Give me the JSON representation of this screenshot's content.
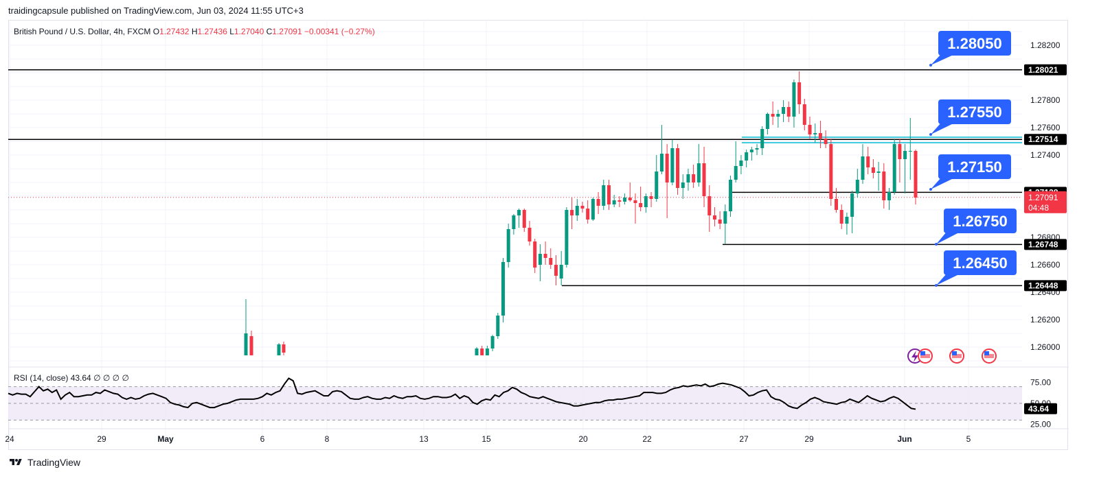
{
  "publisher": "traidingcapsule published on TradingView.com, Jun 03, 2024 11:55 UTC+3",
  "symbol": "British Pound / U.S. Dollar, 4h, FXCM",
  "ohlc": [
    {
      "k": "O",
      "v": "1.27432"
    },
    {
      "k": "H",
      "v": "1.27436"
    },
    {
      "k": "L",
      "v": "1.27040"
    },
    {
      "k": "C",
      "v": "1.27091"
    }
  ],
  "change": "−0.00341 (−0.27%)",
  "brand": "TradingView",
  "colors": {
    "up": "#089981",
    "down": "#f23645",
    "callout": "#2962ff",
    "rsi": "#000000",
    "rsi_band": "#7e57c2"
  },
  "chart_data": {
    "type": "candlestick",
    "symbol": "GBPUSD",
    "timeframe": "4h",
    "y_ticks": [
      "1.28200",
      "1.27800",
      "1.27600",
      "1.27400",
      "1.26800",
      "1.26600",
      "1.26400",
      "1.26200",
      "1.26000"
    ],
    "x_ticks": [
      "24",
      "29",
      "May",
      "6",
      "8",
      "13",
      "15",
      "20",
      "22",
      "27",
      "29",
      "Jun",
      "5"
    ],
    "horizontal_levels": [
      {
        "value": 1.28021,
        "label": "1.28021"
      },
      {
        "value": 1.27514,
        "label": "1.27514"
      },
      {
        "value": 1.27128,
        "label": "1.27128"
      },
      {
        "value": 1.26748,
        "label": "1.26748"
      },
      {
        "value": 1.26448,
        "label": "1.26448"
      }
    ],
    "current_price": {
      "value": 1.27091,
      "label": "1.27091",
      "countdown": "04:48"
    },
    "callouts": [
      {
        "label": "1.28050",
        "value": 1.2805
      },
      {
        "label": "1.27550",
        "value": 1.2755
      },
      {
        "label": "1.27150",
        "value": 1.2715
      },
      {
        "label": "1.26750",
        "value": 1.2675
      },
      {
        "label": "1.26450",
        "value": 1.2645
      }
    ],
    "candles": [
      {
        "o": 1.2594,
        "h": 1.2635,
        "l": 1.2594,
        "c": 1.261
      },
      {
        "o": 1.2608,
        "h": 1.2612,
        "l": 1.2594,
        "c": 1.2594
      },
      {
        "o": 1.2594,
        "h": 1.2603,
        "l": 1.2594,
        "c": 1.2602
      },
      {
        "o": 1.2602,
        "h": 1.2604,
        "l": 1.2594,
        "c": 1.2596
      },
      {
        "o": 1.2594,
        "h": 1.26,
        "l": 1.2594,
        "c": 1.2599
      },
      {
        "o": 1.2599,
        "h": 1.2601,
        "l": 1.2594,
        "c": 1.2594
      },
      {
        "o": 1.2594,
        "h": 1.2601,
        "l": 1.2594,
        "c": 1.2599
      },
      {
        "o": 1.2599,
        "h": 1.2609,
        "l": 1.2597,
        "c": 1.2608
      },
      {
        "o": 1.2608,
        "h": 1.2625,
        "l": 1.2606,
        "c": 1.2623
      },
      {
        "o": 1.2623,
        "h": 1.2665,
        "l": 1.2618,
        "c": 1.2662
      },
      {
        "o": 1.2662,
        "h": 1.269,
        "l": 1.2658,
        "c": 1.2686
      },
      {
        "o": 1.2686,
        "h": 1.2697,
        "l": 1.2682,
        "c": 1.2696
      },
      {
        "o": 1.2696,
        "h": 1.2701,
        "l": 1.2687,
        "c": 1.27
      },
      {
        "o": 1.27,
        "h": 1.2701,
        "l": 1.2684,
        "c": 1.2687
      },
      {
        "o": 1.2687,
        "h": 1.2692,
        "l": 1.2674,
        "c": 1.2677
      },
      {
        "o": 1.2677,
        "h": 1.2679,
        "l": 1.2654,
        "c": 1.2658
      },
      {
        "o": 1.266,
        "h": 1.2675,
        "l": 1.2648,
        "c": 1.2668
      },
      {
        "o": 1.2668,
        "h": 1.2677,
        "l": 1.266,
        "c": 1.2665
      },
      {
        "o": 1.2665,
        "h": 1.2672,
        "l": 1.2657,
        "c": 1.266
      },
      {
        "o": 1.266,
        "h": 1.2667,
        "l": 1.2645,
        "c": 1.2652
      },
      {
        "o": 1.265,
        "h": 1.267,
        "l": 1.2645,
        "c": 1.266
      },
      {
        "o": 1.266,
        "h": 1.2702,
        "l": 1.2658,
        "c": 1.27
      },
      {
        "o": 1.27,
        "h": 1.2709,
        "l": 1.2686,
        "c": 1.2696
      },
      {
        "o": 1.2696,
        "h": 1.2708,
        "l": 1.2692,
        "c": 1.2703
      },
      {
        "o": 1.2703,
        "h": 1.2706,
        "l": 1.2698,
        "c": 1.2701
      },
      {
        "o": 1.2701,
        "h": 1.2707,
        "l": 1.269,
        "c": 1.2693
      },
      {
        "o": 1.2693,
        "h": 1.2709,
        "l": 1.2692,
        "c": 1.2708
      },
      {
        "o": 1.2708,
        "h": 1.2713,
        "l": 1.2697,
        "c": 1.2703
      },
      {
        "o": 1.2703,
        "h": 1.2722,
        "l": 1.27,
        "c": 1.2718
      },
      {
        "o": 1.2718,
        "h": 1.2722,
        "l": 1.27,
        "c": 1.2704
      },
      {
        "o": 1.2704,
        "h": 1.2711,
        "l": 1.2702,
        "c": 1.2707
      },
      {
        "o": 1.2707,
        "h": 1.271,
        "l": 1.2702,
        "c": 1.2706
      },
      {
        "o": 1.2706,
        "h": 1.2712,
        "l": 1.2704,
        "c": 1.2709
      },
      {
        "o": 1.2709,
        "h": 1.272,
        "l": 1.2706,
        "c": 1.2707
      },
      {
        "o": 1.2707,
        "h": 1.2712,
        "l": 1.269,
        "c": 1.2705
      },
      {
        "o": 1.2705,
        "h": 1.2717,
        "l": 1.2699,
        "c": 1.2702
      },
      {
        "o": 1.2702,
        "h": 1.2712,
        "l": 1.2698,
        "c": 1.271
      },
      {
        "o": 1.271,
        "h": 1.2713,
        "l": 1.2702,
        "c": 1.2708
      },
      {
        "o": 1.2708,
        "h": 1.274,
        "l": 1.2706,
        "c": 1.2728
      },
      {
        "o": 1.2728,
        "h": 1.2762,
        "l": 1.2726,
        "c": 1.2741
      },
      {
        "o": 1.2741,
        "h": 1.2748,
        "l": 1.2694,
        "c": 1.272
      },
      {
        "o": 1.272,
        "h": 1.2751,
        "l": 1.2718,
        "c": 1.2745
      },
      {
        "o": 1.2745,
        "h": 1.2748,
        "l": 1.2711,
        "c": 1.2716
      },
      {
        "o": 1.2716,
        "h": 1.2726,
        "l": 1.2708,
        "c": 1.272
      },
      {
        "o": 1.272,
        "h": 1.273,
        "l": 1.2714,
        "c": 1.2726
      },
      {
        "o": 1.2726,
        "h": 1.2733,
        "l": 1.2716,
        "c": 1.272
      },
      {
        "o": 1.272,
        "h": 1.2748,
        "l": 1.2717,
        "c": 1.2734
      },
      {
        "o": 1.2734,
        "h": 1.2746,
        "l": 1.2702,
        "c": 1.271
      },
      {
        "o": 1.271,
        "h": 1.2718,
        "l": 1.2684,
        "c": 1.2696
      },
      {
        "o": 1.2696,
        "h": 1.2702,
        "l": 1.2688,
        "c": 1.2693
      },
      {
        "o": 1.2693,
        "h": 1.2699,
        "l": 1.2686,
        "c": 1.269
      },
      {
        "o": 1.269,
        "h": 1.2704,
        "l": 1.2675,
        "c": 1.2699
      },
      {
        "o": 1.2699,
        "h": 1.2725,
        "l": 1.2695,
        "c": 1.2722
      },
      {
        "o": 1.2722,
        "h": 1.275,
        "l": 1.272,
        "c": 1.2732
      },
      {
        "o": 1.2732,
        "h": 1.274,
        "l": 1.2726,
        "c": 1.2736
      },
      {
        "o": 1.2736,
        "h": 1.2744,
        "l": 1.2731,
        "c": 1.2742
      },
      {
        "o": 1.2742,
        "h": 1.2746,
        "l": 1.2736,
        "c": 1.2744
      },
      {
        "o": 1.2744,
        "h": 1.2748,
        "l": 1.274,
        "c": 1.2745
      },
      {
        "o": 1.2745,
        "h": 1.2761,
        "l": 1.274,
        "c": 1.2759
      },
      {
        "o": 1.2759,
        "h": 1.2771,
        "l": 1.2755,
        "c": 1.277
      },
      {
        "o": 1.277,
        "h": 1.2779,
        "l": 1.2762,
        "c": 1.2768
      },
      {
        "o": 1.2768,
        "h": 1.2773,
        "l": 1.276,
        "c": 1.277
      },
      {
        "o": 1.277,
        "h": 1.278,
        "l": 1.2764,
        "c": 1.2775
      },
      {
        "o": 1.2775,
        "h": 1.2779,
        "l": 1.2764,
        "c": 1.2768
      },
      {
        "o": 1.2768,
        "h": 1.2795,
        "l": 1.276,
        "c": 1.2793
      },
      {
        "o": 1.2793,
        "h": 1.2801,
        "l": 1.277,
        "c": 1.2777
      },
      {
        "o": 1.2777,
        "h": 1.2781,
        "l": 1.2758,
        "c": 1.2762
      },
      {
        "o": 1.2762,
        "h": 1.2768,
        "l": 1.2752,
        "c": 1.2755
      },
      {
        "o": 1.2755,
        "h": 1.2763,
        "l": 1.2749,
        "c": 1.2756
      },
      {
        "o": 1.2756,
        "h": 1.2765,
        "l": 1.2745,
        "c": 1.2752
      },
      {
        "o": 1.2752,
        "h": 1.2758,
        "l": 1.2745,
        "c": 1.2748
      },
      {
        "o": 1.2748,
        "h": 1.2752,
        "l": 1.2703,
        "c": 1.2708
      },
      {
        "o": 1.2708,
        "h": 1.2716,
        "l": 1.2698,
        "c": 1.27
      },
      {
        "o": 1.27,
        "h": 1.2704,
        "l": 1.2686,
        "c": 1.269
      },
      {
        "o": 1.269,
        "h": 1.2698,
        "l": 1.2682,
        "c": 1.2695
      },
      {
        "o": 1.2695,
        "h": 1.2714,
        "l": 1.2683,
        "c": 1.2712
      },
      {
        "o": 1.2712,
        "h": 1.273,
        "l": 1.2709,
        "c": 1.2722
      },
      {
        "o": 1.2722,
        "h": 1.2748,
        "l": 1.2719,
        "c": 1.2739
      },
      {
        "o": 1.2739,
        "h": 1.2746,
        "l": 1.2726,
        "c": 1.2731
      },
      {
        "o": 1.2731,
        "h": 1.2737,
        "l": 1.2723,
        "c": 1.2727
      },
      {
        "o": 1.2727,
        "h": 1.2735,
        "l": 1.2714,
        "c": 1.2728
      },
      {
        "o": 1.2728,
        "h": 1.2734,
        "l": 1.2701,
        "c": 1.2707
      },
      {
        "o": 1.2707,
        "h": 1.2716,
        "l": 1.27,
        "c": 1.2713
      },
      {
        "o": 1.2713,
        "h": 1.2752,
        "l": 1.2711,
        "c": 1.2748
      },
      {
        "o": 1.2748,
        "h": 1.2752,
        "l": 1.272,
        "c": 1.2737
      },
      {
        "o": 1.2737,
        "h": 1.2748,
        "l": 1.2712,
        "c": 1.2743
      },
      {
        "o": 1.2743,
        "h": 1.2767,
        "l": 1.2722,
        "c": 1.2743
      },
      {
        "o": 1.2743,
        "h": 1.2744,
        "l": 1.2704,
        "c": 1.2709
      }
    ],
    "rsi": {
      "label": "RSI (14, close)",
      "value": "43.64",
      "extra": [
        "∅",
        "∅",
        "∅",
        "∅"
      ],
      "y_ticks": [
        "75.00",
        "50.00",
        "25.00"
      ],
      "upper": 70,
      "lower": 30,
      "values": [
        62,
        60,
        62,
        61,
        61,
        58,
        64,
        70,
        65,
        67,
        63,
        66,
        55,
        60,
        63,
        58,
        58,
        59,
        60,
        60,
        63,
        62,
        66,
        64,
        62,
        61,
        57,
        55,
        57,
        55,
        56,
        59,
        61,
        62,
        60,
        58,
        56,
        51,
        49,
        48,
        46,
        45,
        50,
        51,
        49,
        47,
        45,
        45,
        47,
        49,
        50,
        52,
        54,
        55,
        55,
        55,
        55,
        56,
        58,
        62,
        60,
        63,
        65,
        73,
        80,
        77,
        62,
        61,
        63,
        64,
        65,
        62,
        59,
        59,
        64,
        65,
        64,
        60,
        56,
        55,
        55,
        57,
        58,
        56,
        55,
        55,
        57,
        56,
        59,
        57,
        56,
        58,
        58,
        59,
        56,
        55,
        56,
        58,
        58,
        57,
        57,
        58,
        61,
        56,
        59,
        57,
        51,
        49,
        53,
        55,
        54,
        60,
        58,
        63,
        65,
        69,
        67,
        63,
        61,
        58,
        57,
        56,
        58,
        56,
        54,
        52,
        51,
        50,
        49,
        47,
        47,
        48,
        49,
        50,
        51,
        51,
        53,
        54,
        54,
        55,
        55,
        56,
        57,
        58,
        59,
        63,
        63,
        63,
        62,
        62,
        63,
        66,
        68,
        69,
        71,
        70,
        71,
        72,
        71,
        73,
        70,
        71,
        73,
        74,
        73,
        72,
        70,
        68,
        64,
        59,
        60,
        63,
        65,
        66,
        58,
        55,
        54,
        51,
        47,
        45,
        44,
        48,
        51,
        55,
        57,
        55,
        52,
        51,
        50,
        49,
        51,
        52,
        55,
        53,
        51,
        55,
        59,
        56,
        54,
        52,
        53,
        56,
        58,
        56,
        52,
        48,
        44,
        43
      ]
    }
  }
}
